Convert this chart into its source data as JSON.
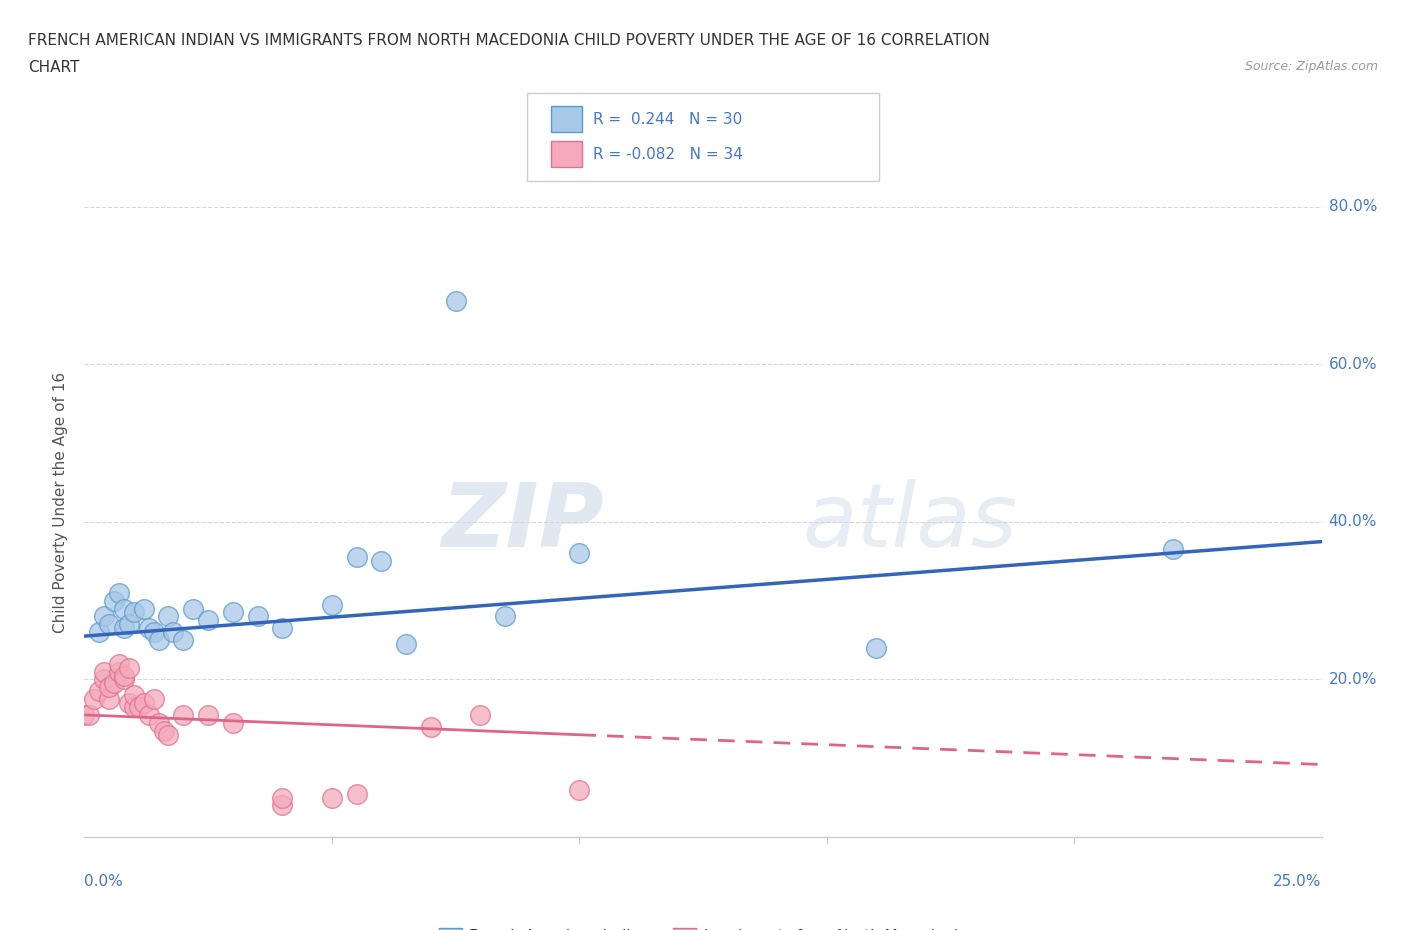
{
  "title_line1": "FRENCH AMERICAN INDIAN VS IMMIGRANTS FROM NORTH MACEDONIA CHILD POVERTY UNDER THE AGE OF 16 CORRELATION",
  "title_line2": "CHART",
  "source_text": "Source: ZipAtlas.com",
  "ylabel": "Child Poverty Under the Age of 16",
  "xmin": 0.0,
  "xmax": 0.25,
  "ymin": 0.0,
  "ymax": 0.85,
  "r_blue": 0.244,
  "n_blue": 30,
  "r_pink": -0.082,
  "n_pink": 34,
  "watermark_zip": "ZIP",
  "watermark_atlas": "atlas",
  "legend_label_blue": "French American Indians",
  "legend_label_pink": "Immigrants from North Macedonia",
  "blue_color": "#A8C8E8",
  "pink_color": "#F4AABB",
  "blue_edge_color": "#5B9BC8",
  "pink_edge_color": "#E07090",
  "blue_line_color": "#3366BB",
  "pink_line_color": "#DD6688",
  "blue_scatter": [
    [
      0.003,
      0.26
    ],
    [
      0.004,
      0.28
    ],
    [
      0.005,
      0.27
    ],
    [
      0.006,
      0.3
    ],
    [
      0.007,
      0.31
    ],
    [
      0.008,
      0.265
    ],
    [
      0.008,
      0.29
    ],
    [
      0.009,
      0.27
    ],
    [
      0.01,
      0.285
    ],
    [
      0.012,
      0.29
    ],
    [
      0.013,
      0.265
    ],
    [
      0.014,
      0.26
    ],
    [
      0.015,
      0.25
    ],
    [
      0.017,
      0.28
    ],
    [
      0.018,
      0.26
    ],
    [
      0.02,
      0.25
    ],
    [
      0.022,
      0.29
    ],
    [
      0.025,
      0.275
    ],
    [
      0.03,
      0.285
    ],
    [
      0.035,
      0.28
    ],
    [
      0.04,
      0.265
    ],
    [
      0.05,
      0.295
    ],
    [
      0.055,
      0.355
    ],
    [
      0.06,
      0.35
    ],
    [
      0.065,
      0.245
    ],
    [
      0.075,
      0.68
    ],
    [
      0.085,
      0.28
    ],
    [
      0.1,
      0.36
    ],
    [
      0.16,
      0.24
    ],
    [
      0.22,
      0.365
    ]
  ],
  "pink_scatter": [
    [
      0.0,
      0.155
    ],
    [
      0.001,
      0.155
    ],
    [
      0.002,
      0.175
    ],
    [
      0.003,
      0.185
    ],
    [
      0.004,
      0.2
    ],
    [
      0.004,
      0.21
    ],
    [
      0.005,
      0.175
    ],
    [
      0.005,
      0.19
    ],
    [
      0.006,
      0.195
    ],
    [
      0.007,
      0.21
    ],
    [
      0.007,
      0.22
    ],
    [
      0.008,
      0.2
    ],
    [
      0.008,
      0.205
    ],
    [
      0.009,
      0.215
    ],
    [
      0.009,
      0.17
    ],
    [
      0.01,
      0.165
    ],
    [
      0.01,
      0.18
    ],
    [
      0.011,
      0.165
    ],
    [
      0.012,
      0.17
    ],
    [
      0.013,
      0.155
    ],
    [
      0.014,
      0.175
    ],
    [
      0.015,
      0.145
    ],
    [
      0.016,
      0.135
    ],
    [
      0.017,
      0.13
    ],
    [
      0.02,
      0.155
    ],
    [
      0.025,
      0.155
    ],
    [
      0.03,
      0.145
    ],
    [
      0.04,
      0.04
    ],
    [
      0.04,
      0.05
    ],
    [
      0.05,
      0.05
    ],
    [
      0.055,
      0.055
    ],
    [
      0.07,
      0.14
    ],
    [
      0.08,
      0.155
    ],
    [
      0.1,
      0.06
    ]
  ],
  "grid_color": "#cccccc",
  "background_color": "#ffffff",
  "title_color": "#333333",
  "axis_label_color": "#555555",
  "tick_color": "#4477CC"
}
